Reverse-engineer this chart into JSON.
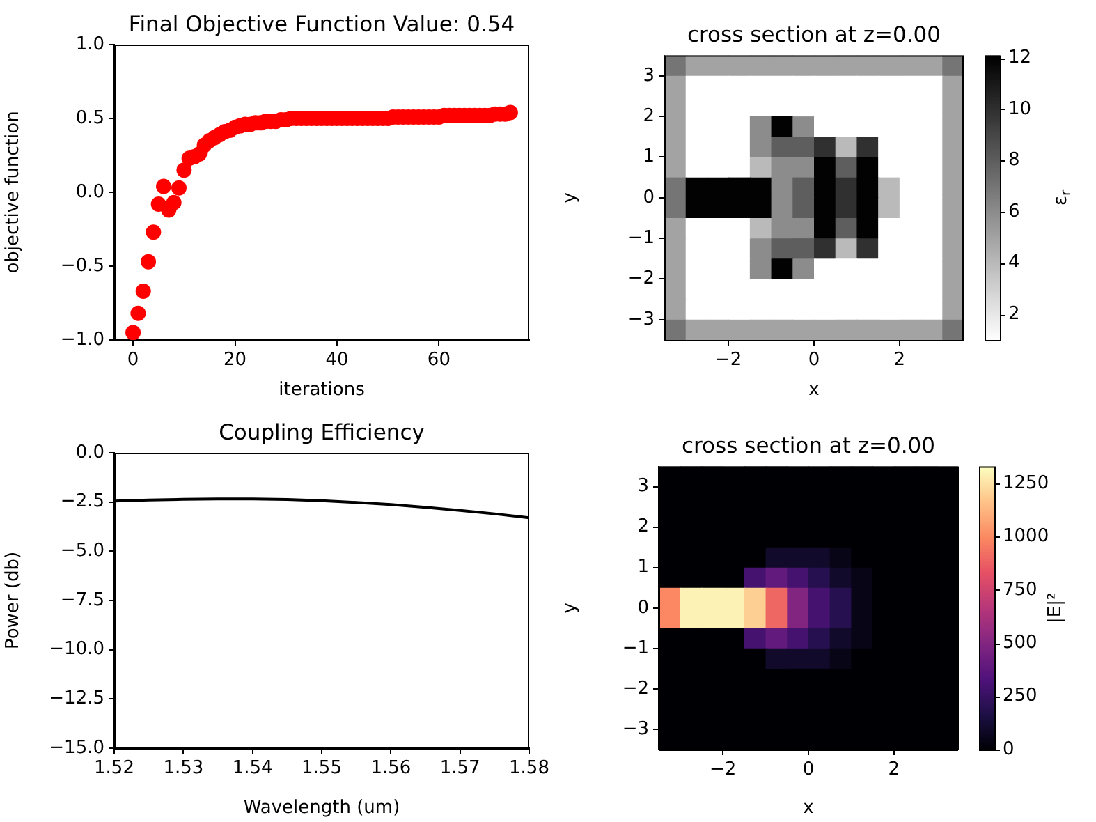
{
  "chart_data": [
    {
      "type": "scatter",
      "title": "Final Objective Function Value: 0.54",
      "xlabel": "iterations",
      "ylabel": "objective function",
      "marker": "circle",
      "x": [
        0,
        1,
        2,
        3,
        4,
        5,
        6,
        7,
        8,
        9,
        10,
        11,
        12,
        13,
        14,
        15,
        16,
        17,
        18,
        19,
        20,
        21,
        22,
        23,
        24,
        25,
        26,
        27,
        28,
        29,
        30,
        31,
        32,
        33,
        34,
        35,
        36,
        37,
        38,
        39,
        40,
        41,
        42,
        43,
        44,
        45,
        46,
        47,
        48,
        49,
        50,
        51,
        52,
        53,
        54,
        55,
        56,
        57,
        58,
        59,
        60,
        61,
        62,
        63,
        64,
        65,
        66,
        67,
        68,
        69,
        70,
        71,
        72,
        73,
        74
      ],
      "series": [
        {
          "color": "#ff0000",
          "values": [
            -0.95,
            -0.82,
            -0.67,
            -0.47,
            -0.27,
            -0.08,
            0.04,
            -0.12,
            -0.07,
            0.03,
            0.15,
            0.23,
            0.24,
            0.26,
            0.32,
            0.35,
            0.37,
            0.39,
            0.41,
            0.42,
            0.44,
            0.45,
            0.46,
            0.46,
            0.47,
            0.47,
            0.48,
            0.48,
            0.48,
            0.49,
            0.49,
            0.5,
            0.5,
            0.5,
            0.5,
            0.5,
            0.5,
            0.5,
            0.5,
            0.5,
            0.5,
            0.5,
            0.5,
            0.5,
            0.5,
            0.5,
            0.5,
            0.5,
            0.5,
            0.5,
            0.5,
            0.51,
            0.51,
            0.51,
            0.51,
            0.51,
            0.51,
            0.51,
            0.51,
            0.51,
            0.51,
            0.52,
            0.52,
            0.52,
            0.52,
            0.52,
            0.52,
            0.52,
            0.52,
            0.52,
            0.52,
            0.53,
            0.53,
            0.53,
            0.54
          ]
        }
      ],
      "xlim": [
        -3.7,
        77.7
      ],
      "xticks": [
        0,
        20,
        40,
        60
      ],
      "ylim": [
        -1,
        1
      ],
      "yticks": [
        {
          "value": -1,
          "label": "−1.0"
        },
        {
          "value": -0.5,
          "label": "−0.5"
        },
        {
          "value": 0,
          "label": "0.0"
        },
        {
          "value": 0.5,
          "label": "0.5"
        },
        {
          "value": 1,
          "label": "1.0"
        }
      ]
    },
    {
      "type": "heatmap",
      "title": "cross section at z=0.00",
      "xlabel": "x",
      "ylabel": "y",
      "clabel": "ε$_{r}$",
      "colors": [
        "#ffffff",
        "#000000"
      ],
      "x": [
        -3.25,
        -2.75,
        -2.25,
        -1.75,
        -1.25,
        -0.75,
        -0.25,
        0.25,
        0.75,
        1.25,
        1.75,
        2.25,
        2.75,
        3.25
      ],
      "cells": [
        [
          7,
          5,
          5,
          5,
          5,
          5,
          5,
          5,
          5,
          5,
          5,
          5,
          5,
          7
        ],
        [
          5,
          1,
          1,
          1,
          1,
          1,
          1,
          1,
          1,
          1,
          1,
          1,
          1,
          5
        ],
        [
          5,
          1,
          1,
          1,
          1,
          1,
          1,
          1,
          1,
          1,
          1,
          1,
          1,
          5
        ],
        [
          5,
          1,
          1,
          1,
          6,
          12,
          6,
          1,
          1,
          1,
          1,
          1,
          1,
          5
        ],
        [
          5,
          1,
          1,
          1,
          6,
          8,
          8,
          10,
          4,
          10,
          1,
          1,
          1,
          5
        ],
        [
          5,
          1,
          1,
          1,
          4,
          6,
          6,
          12,
          8,
          12,
          1,
          1,
          1,
          5
        ],
        [
          7,
          12,
          12,
          12,
          12,
          6,
          8,
          12,
          10,
          12,
          4,
          1,
          1,
          5
        ],
        [
          7,
          12,
          12,
          12,
          12,
          6,
          8,
          12,
          10,
          12,
          4,
          1,
          1,
          5
        ],
        [
          5,
          1,
          1,
          1,
          4,
          6,
          6,
          12,
          8,
          12,
          1,
          1,
          1,
          5
        ],
        [
          5,
          1,
          1,
          1,
          6,
          8,
          8,
          10,
          4,
          10,
          1,
          1,
          1,
          5
        ],
        [
          5,
          1,
          1,
          1,
          6,
          12,
          6,
          1,
          1,
          1,
          1,
          1,
          1,
          5
        ],
        [
          5,
          1,
          1,
          1,
          1,
          1,
          1,
          1,
          1,
          1,
          1,
          1,
          1,
          5
        ],
        [
          5,
          1,
          1,
          1,
          1,
          1,
          1,
          1,
          1,
          1,
          1,
          1,
          1,
          5
        ],
        [
          7,
          5,
          5,
          5,
          5,
          5,
          5,
          5,
          5,
          5,
          5,
          5,
          5,
          7
        ]
      ],
      "xlim": [
        -3.5,
        3.5
      ],
      "xticks": [
        {
          "value": -2,
          "label": "−2"
        },
        0,
        2
      ],
      "ylim": [
        -3.5,
        3.5
      ],
      "yticks": [
        {
          "value": -3,
          "label": "−3"
        },
        {
          "value": -2,
          "label": "−2"
        },
        {
          "value": -1,
          "label": "−1"
        },
        0,
        1,
        2,
        3
      ],
      "clim": [
        1,
        12.1
      ],
      "cticks": [
        2,
        4,
        6,
        8,
        10,
        12
      ]
    },
    {
      "type": "line",
      "title": "Coupling Efficiency",
      "xlabel": "Wavelength (um)",
      "ylabel": "Power (db)",
      "x": [
        1.52,
        1.525,
        1.53,
        1.535,
        1.54,
        1.545,
        1.55,
        1.555,
        1.56,
        1.565,
        1.57,
        1.575,
        1.58
      ],
      "series": [
        {
          "color": "#000000",
          "values": [
            -2.45,
            -2.4,
            -2.36,
            -2.34,
            -2.34,
            -2.37,
            -2.43,
            -2.52,
            -2.63,
            -2.77,
            -2.93,
            -3.1,
            -3.3
          ]
        }
      ],
      "xlim": [
        1.52,
        1.58
      ],
      "xticks": [
        {
          "value": 1.52,
          "label": "1.52"
        },
        {
          "value": 1.53,
          "label": "1.53"
        },
        {
          "value": 1.54,
          "label": "1.54"
        },
        {
          "value": 1.55,
          "label": "1.55"
        },
        {
          "value": 1.56,
          "label": "1.56"
        },
        {
          "value": 1.57,
          "label": "1.57"
        },
        {
          "value": 1.58,
          "label": "1.58"
        }
      ],
      "ylim": [
        -15,
        0
      ],
      "yticks": [
        {
          "value": -15,
          "label": "−15.0"
        },
        {
          "value": -12.5,
          "label": "−12.5"
        },
        {
          "value": -10,
          "label": "−10.0"
        },
        {
          "value": -7.5,
          "label": "−7.5"
        },
        {
          "value": -5,
          "label": "−5.0"
        },
        {
          "value": -2.5,
          "label": "−2.5"
        },
        {
          "value": 0,
          "label": "0.0"
        }
      ]
    },
    {
      "type": "heatmap",
      "title": "cross section at z=0.00",
      "xlabel": "x",
      "ylabel": "y",
      "clabel": "|E|²",
      "colors": [
        "#000004",
        "#1c1044",
        "#4f127b",
        "#812581",
        "#b5367a",
        "#e55064",
        "#fb8761",
        "#fec287",
        "#fcfdbf"
      ],
      "x": [
        -3.25,
        -2.75,
        -2.25,
        -1.75,
        -1.25,
        -0.75,
        -0.25,
        0.25,
        0.75,
        1.25,
        1.75,
        2.25,
        2.75,
        3.25
      ],
      "cells": [
        [
          0,
          0,
          0,
          0,
          0,
          0,
          0,
          0,
          0,
          0,
          0,
          0,
          0,
          0
        ],
        [
          0,
          0,
          0,
          0,
          0,
          0,
          0,
          0,
          0,
          0,
          0,
          0,
          0,
          0
        ],
        [
          0,
          0,
          0,
          0,
          0,
          0,
          0,
          0,
          0,
          0,
          0,
          0,
          0,
          0
        ],
        [
          0,
          0,
          0,
          0,
          0,
          0,
          0,
          0,
          0,
          0,
          0,
          0,
          0,
          0
        ],
        [
          0,
          0,
          0,
          0,
          0,
          100,
          100,
          100,
          50,
          0,
          0,
          0,
          0,
          0
        ],
        [
          0,
          0,
          0,
          0,
          300,
          400,
          300,
          200,
          100,
          50,
          0,
          0,
          0,
          0
        ],
        [
          1000,
          1300,
          1300,
          1300,
          1200,
          900,
          500,
          300,
          200,
          50,
          0,
          0,
          0,
          0
        ],
        [
          1000,
          1300,
          1300,
          1300,
          1200,
          900,
          500,
          300,
          200,
          50,
          0,
          0,
          0,
          0
        ],
        [
          0,
          0,
          0,
          0,
          300,
          400,
          300,
          200,
          100,
          50,
          0,
          0,
          0,
          0
        ],
        [
          0,
          0,
          0,
          0,
          0,
          100,
          100,
          100,
          50,
          0,
          0,
          0,
          0,
          0
        ],
        [
          0,
          0,
          0,
          0,
          0,
          0,
          0,
          0,
          0,
          0,
          0,
          0,
          0,
          0
        ],
        [
          0,
          0,
          0,
          0,
          0,
          0,
          0,
          0,
          0,
          0,
          0,
          0,
          0,
          0
        ],
        [
          0,
          0,
          0,
          0,
          0,
          0,
          0,
          0,
          0,
          0,
          0,
          0,
          0,
          0
        ],
        [
          0,
          0,
          0,
          0,
          0,
          0,
          0,
          0,
          0,
          0,
          0,
          0,
          0,
          0
        ]
      ],
      "xlim": [
        -3.5,
        3.5
      ],
      "xticks": [
        {
          "value": -2,
          "label": "−2"
        },
        0,
        2
      ],
      "ylim": [
        -3.5,
        3.5
      ],
      "yticks": [
        {
          "value": -3,
          "label": "−3"
        },
        {
          "value": -2,
          "label": "−2"
        },
        {
          "value": -1,
          "label": "−1"
        },
        0,
        1,
        2,
        3
      ],
      "clim": [
        0,
        1330
      ],
      "cticks": [
        0,
        250,
        500,
        750,
        1000,
        1250
      ]
    }
  ]
}
